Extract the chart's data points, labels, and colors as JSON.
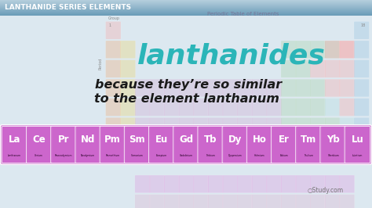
{
  "title_bar_text": "LANTHANIDE SERIES ELEMENTS",
  "title_text_color": "#ffffff",
  "main_bg": "#d8e4ed",
  "lanthanides_color": "#2bb5b8",
  "lanthanides_text": "lanthanides",
  "body_text_line1": "because they’re so similar",
  "body_text_line2": "to the element lanthanum",
  "body_text_color": "#1a1a1a",
  "periodic_table_title": "Periodic Table of Elements",
  "elements": [
    "La",
    "Ce",
    "Pr",
    "Nd",
    "Pm",
    "Sm",
    "Eu",
    "Gd",
    "Tb",
    "Dy",
    "Ho",
    "Er",
    "Tm",
    "Yb",
    "Lu"
  ],
  "element_names": [
    "Lanthanum",
    "Cerium",
    "Praseodymium",
    "Neodymium",
    "Promethium",
    "Samarium",
    "Europium",
    "Gadolinium",
    "Terbium",
    "Dysprosium",
    "Holmium",
    "Erbium",
    "Thulium",
    "Ytterbium",
    "Lutetium"
  ],
  "element_bar_color": "#cc66cc",
  "element_text_color": "#ffffff",
  "element_name_color": "#220022",
  "header_gradient_top": "#6a9cb8",
  "header_gradient_bot": "#b8d0de",
  "pt_alpha": 0.28
}
